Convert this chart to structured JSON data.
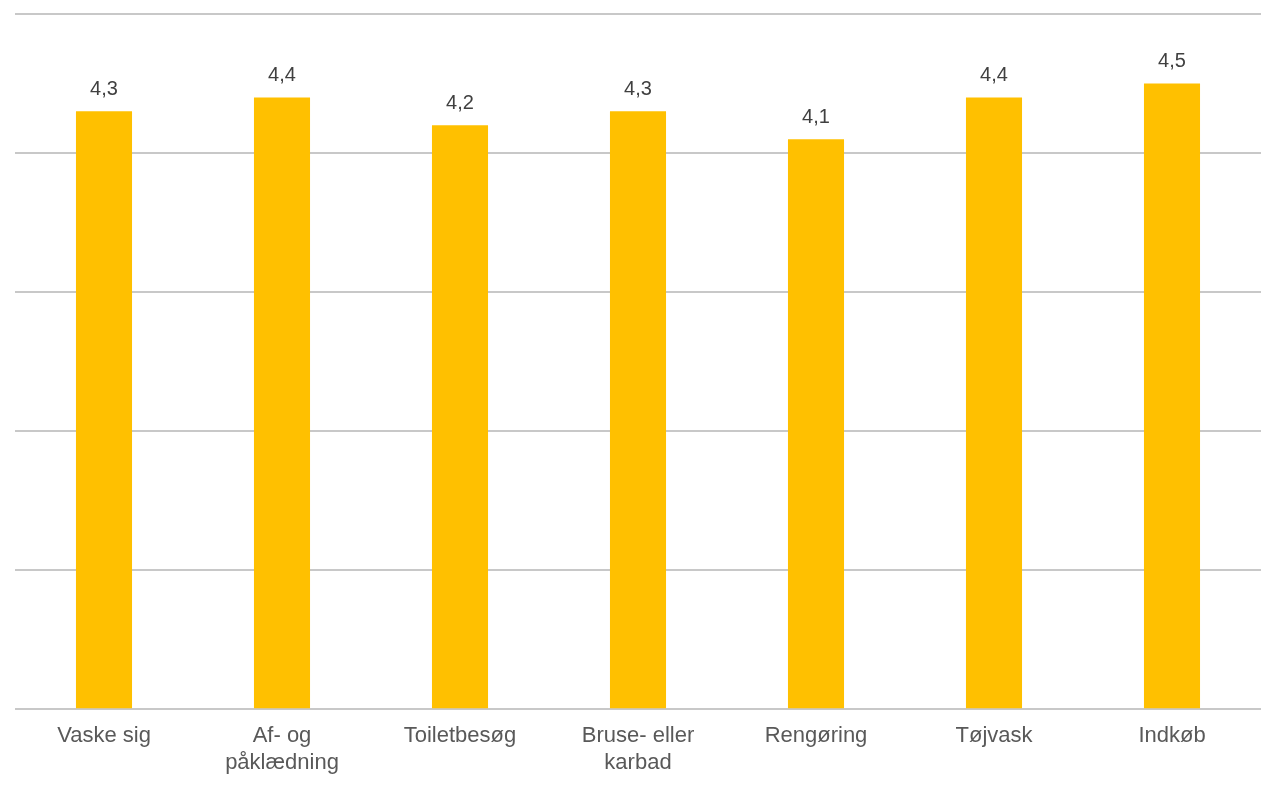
{
  "chart_data": {
    "type": "bar",
    "categories": [
      "Vaske sig",
      "Af- og påklædning",
      "Toiletbesøg",
      "Bruse- eller karbad",
      "Rengøring",
      "Tøjvask",
      "Indkøb"
    ],
    "values": [
      4.3,
      4.4,
      4.2,
      4.3,
      4.1,
      4.4,
      4.5
    ],
    "value_labels": [
      "4,3",
      "4,4",
      "4,2",
      "4,3",
      "4,1",
      "4,4",
      "4,5"
    ],
    "color": "#ffc000",
    "ylim": [
      0,
      5
    ],
    "yticks": [
      {
        "value": 0,
        "label": null
      },
      {
        "value": 1,
        "label": null
      },
      {
        "value": 2,
        "label": null
      },
      {
        "value": 3,
        "label": null
      },
      {
        "value": 4,
        "label": null
      },
      {
        "value": 5,
        "label": null
      }
    ],
    "tick_labels": "x",
    "grid": "y",
    "legend": false
  }
}
